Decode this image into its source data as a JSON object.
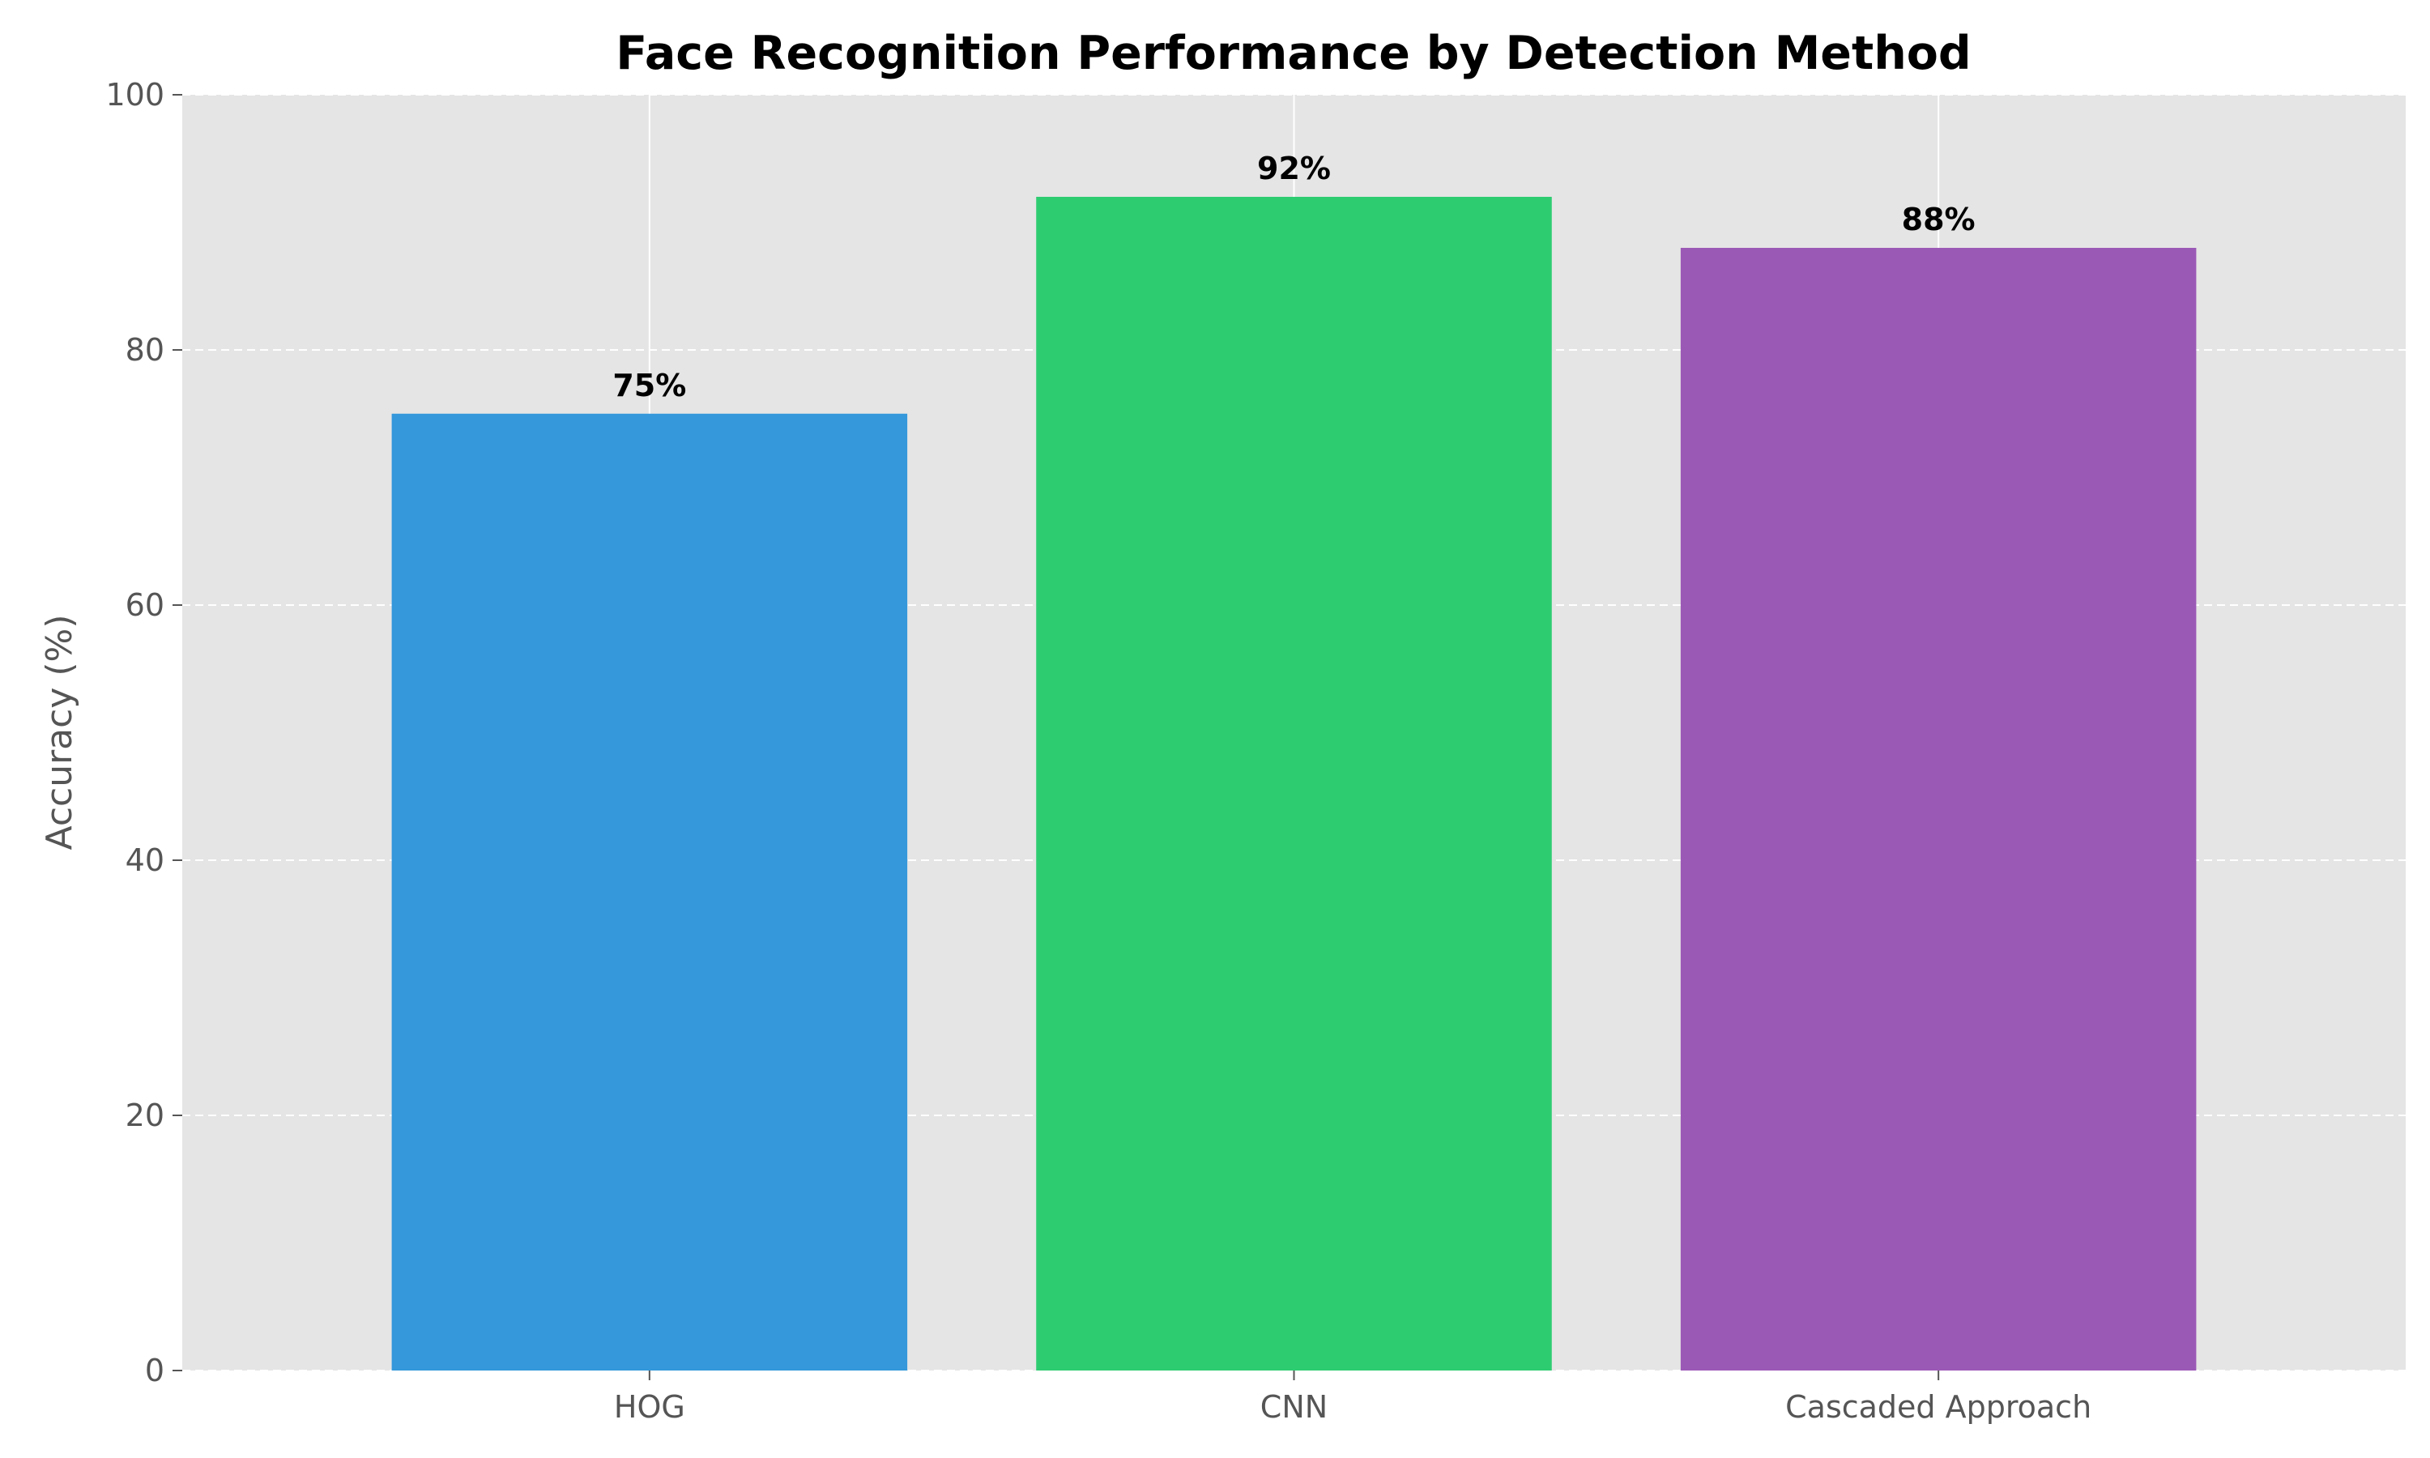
{
  "chart_data": {
    "type": "bar",
    "title": "Face Recognition Performance by Detection Method",
    "xlabel": "",
    "ylabel": "Accuracy (%)",
    "categories": [
      "HOG",
      "CNN",
      "Cascaded Approach"
    ],
    "values": [
      75,
      92,
      88
    ],
    "data_labels": [
      "75%",
      "92%",
      "88%"
    ],
    "colors": [
      "#3498db",
      "#2ecc71",
      "#9b59b6"
    ],
    "ylim": [
      0,
      100
    ],
    "yticks": [
      0,
      20,
      40,
      60,
      80,
      100
    ],
    "ytick_labels": [
      "0",
      "20",
      "40",
      "60",
      "80",
      "100"
    ],
    "grid": true,
    "grid_style": "dashed-horizontal",
    "background_color": "#e5e5e5"
  }
}
